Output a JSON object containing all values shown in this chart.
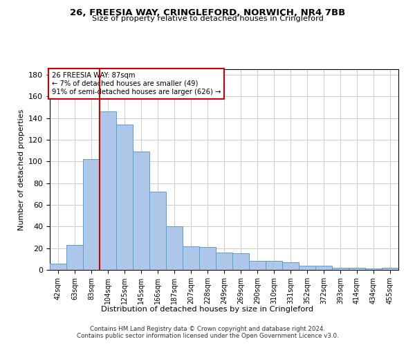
{
  "title1": "26, FREESIA WAY, CRINGLEFORD, NORWICH, NR4 7BB",
  "title2": "Size of property relative to detached houses in Cringleford",
  "xlabel": "Distribution of detached houses by size in Cringleford",
  "ylabel": "Number of detached properties",
  "footer1": "Contains HM Land Registry data © Crown copyright and database right 2024.",
  "footer2": "Contains public sector information licensed under the Open Government Licence v3.0.",
  "annotation_line1": "26 FREESIA WAY: 87sqm",
  "annotation_line2": "← 7% of detached houses are smaller (49)",
  "annotation_line3": "91% of semi-detached houses are larger (626) →",
  "bar_labels": [
    "42sqm",
    "63sqm",
    "83sqm",
    "104sqm",
    "125sqm",
    "145sqm",
    "166sqm",
    "187sqm",
    "207sqm",
    "228sqm",
    "249sqm",
    "269sqm",
    "290sqm",
    "310sqm",
    "331sqm",
    "352sqm",
    "372sqm",
    "393sqm",
    "414sqm",
    "434sqm",
    "455sqm"
  ],
  "bar_values": [
    6,
    23,
    102,
    146,
    134,
    109,
    72,
    40,
    22,
    21,
    16,
    15,
    8,
    8,
    7,
    4,
    4,
    2,
    2,
    1,
    2
  ],
  "bar_color": "#aec6e8",
  "bar_edge_color": "#5b9bd5",
  "bar_width": 1.0,
  "vline_x": 2.5,
  "vline_color": "#cc0000",
  "ylim": [
    0,
    185
  ],
  "yticks": [
    0,
    20,
    40,
    60,
    80,
    100,
    120,
    140,
    160,
    180
  ],
  "annotation_box_color": "#cc0000",
  "annotation_fill": "white",
  "background_color": "#ffffff",
  "grid_color": "#cccccc"
}
